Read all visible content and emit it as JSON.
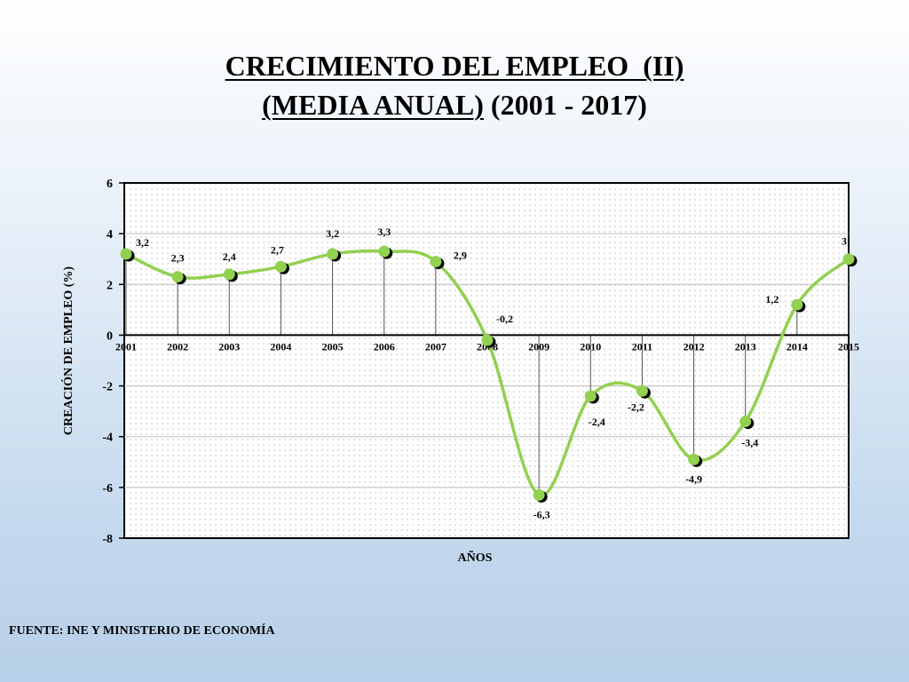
{
  "title": {
    "line1": "CRECIMIENTO DEL EMPLEO  (II)",
    "line2_underlined": "(MEDIA ANUAL)",
    "line2_rest": " (2001 - 2017)"
  },
  "source": "FUENTE: INE Y MINISTERIO DE ECONOMÍA",
  "chart_data": {
    "type": "line",
    "smooth": true,
    "xlabel": "AÑOS",
    "ylabel": "CREACIÓN DE EMPLEO (%)",
    "categories": [
      "2001",
      "2002",
      "2003",
      "2004",
      "2005",
      "2006",
      "2007",
      "2008",
      "2009",
      "2010",
      "2011",
      "2012",
      "2013",
      "2014",
      "2015"
    ],
    "values": [
      3.2,
      2.3,
      2.4,
      2.7,
      3.2,
      3.3,
      2.9,
      -0.2,
      -6.3,
      -2.4,
      -2.2,
      -4.9,
      -3.4,
      1.2,
      3
    ],
    "data_labels": [
      "3,2",
      "2,3",
      "2,4",
      "2,7",
      "3,2",
      "3,3",
      "2,9",
      "-0,2",
      "-6,3",
      "-2,4",
      "-2,2",
      "-4,9",
      "-3,4",
      "1,2",
      "3"
    ],
    "ylim": [
      -8,
      6
    ],
    "yticks": [
      -8,
      -6,
      -4,
      -2,
      0,
      2,
      4,
      6
    ],
    "grid": true,
    "drop_lines": true,
    "colors": {
      "line": "#92d050",
      "marker_shadow": "#000000",
      "axis": "#000000",
      "grid": "#bfbfbf"
    }
  }
}
